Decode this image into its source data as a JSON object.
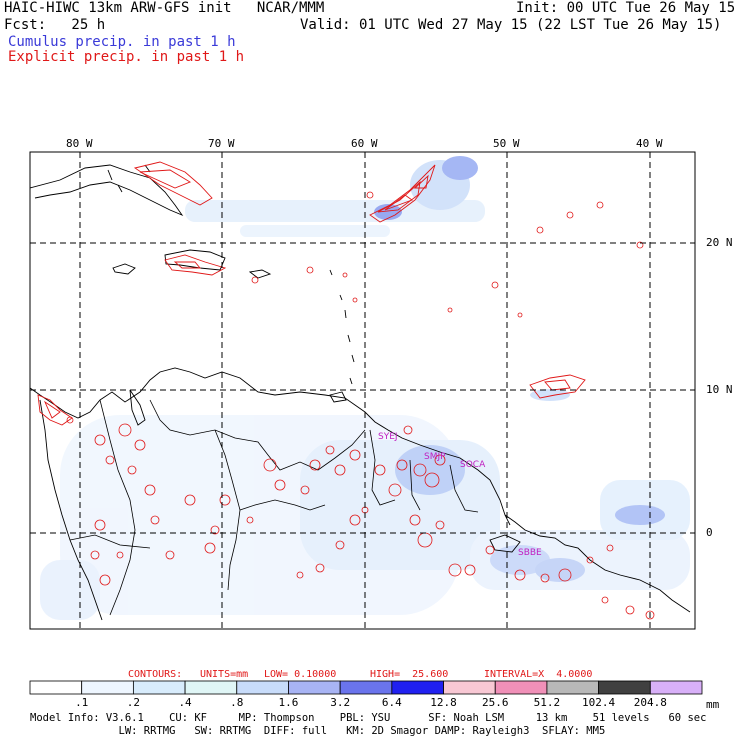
{
  "header": {
    "line1_left": "HAIC-HIWC 13km ARW-GFS init   NCAR/MMM",
    "line1_right": "Init: 00 UTC Tue 26 May 15",
    "line2_left": "Fcst:   25 h",
    "line2_right": "Valid: 01 UTC Wed 27 May 15 (22 LST Tue 26 May 15)",
    "line3": "Cumulus precip. in past 1 h",
    "line4": "Explicit precip. in past 1 h"
  },
  "map": {
    "lon_labels": [
      "80 W",
      "70 W",
      "60 W",
      "50 W",
      "40 W"
    ],
    "lat_labels": [
      "20 N",
      "10 N",
      "0"
    ],
    "stations": [
      "SYEJ",
      "SMJP",
      "SOCA",
      "SBBE"
    ]
  },
  "contours": {
    "label": "CONTOURS:",
    "units": "UNITS=mm",
    "low": "LOW= 0.10000",
    "high": "HIGH=  25.600",
    "interval": "INTERVAL=X  4.0000"
  },
  "colorbar": {
    "labels": [
      ".1",
      ".2",
      ".4",
      ".8",
      "1.6",
      "3.2",
      "6.4",
      "12.8",
      "25.6",
      "51.2",
      "102.4",
      "204.8"
    ],
    "unit": "mm",
    "colors": [
      "#ffffff",
      "#eef6ff",
      "#d8ecfc",
      "#e0f6f6",
      "#c8dcfa",
      "#a8b4f4",
      "#6a74ec",
      "#2020f0",
      "#f8c8d4",
      "#f090b8",
      "#b8b8b8",
      "#404040",
      "#d8b0f8"
    ]
  },
  "footer": {
    "line1": "Model Info: V3.6.1    CU: KF     MP: Thompson    PBL: YSU      SF: Noah LSM     13 km    51 levels   60 sec",
    "line2": "              LW: RRTMG   SW: RRTMG  DIFF: full   KM: 2D Smagor DAMP: Rayleigh3  SFLAY: MM5"
  }
}
